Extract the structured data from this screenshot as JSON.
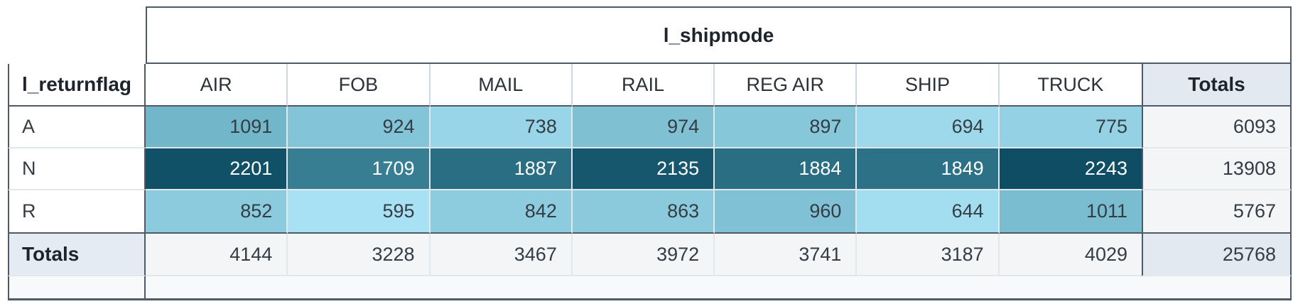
{
  "chart_data": {
    "type": "heatmap",
    "x_dimension": "l_shipmode",
    "y_dimension": "l_returnflag",
    "totals_label": "Totals",
    "columns": [
      "AIR",
      "FOB",
      "MAIL",
      "RAIL",
      "REG AIR",
      "SHIP",
      "TRUCK"
    ],
    "rows": [
      "A",
      "N",
      "R"
    ],
    "values": [
      [
        1091,
        924,
        738,
        974,
        897,
        694,
        775
      ],
      [
        2201,
        1709,
        1887,
        2135,
        1884,
        1849,
        2243
      ],
      [
        852,
        595,
        842,
        863,
        960,
        644,
        1011
      ]
    ],
    "row_totals": [
      6093,
      13908,
      5767
    ],
    "column_totals": [
      4144,
      3228,
      3467,
      3972,
      3741,
      3187,
      4029
    ],
    "grand_total": 25768,
    "legend_position": "none",
    "grid": true,
    "color_scale": {
      "min_value": 595,
      "max_value": 2243,
      "stops": [
        "#a8e1f4",
        "#4e99ad",
        "#0e4d64"
      ],
      "light_text_threshold": 0.5
    }
  },
  "colors": {
    "border_dark": "#4e5a67",
    "border_light": "#e2e7ec",
    "header_border_light": "#cfd9e3",
    "totals_header_bg": "#e3e9f0",
    "totals_row_label_bg": "#e4ebf3",
    "totals_cell_bg": "#f3f5f7",
    "grand_total_bg": "#e3e9f0",
    "footer_bg": "#f8f9fb",
    "header_text": "#1d242b",
    "cell_text_dark": "#343d44",
    "cell_text_light": "#ffffff"
  }
}
